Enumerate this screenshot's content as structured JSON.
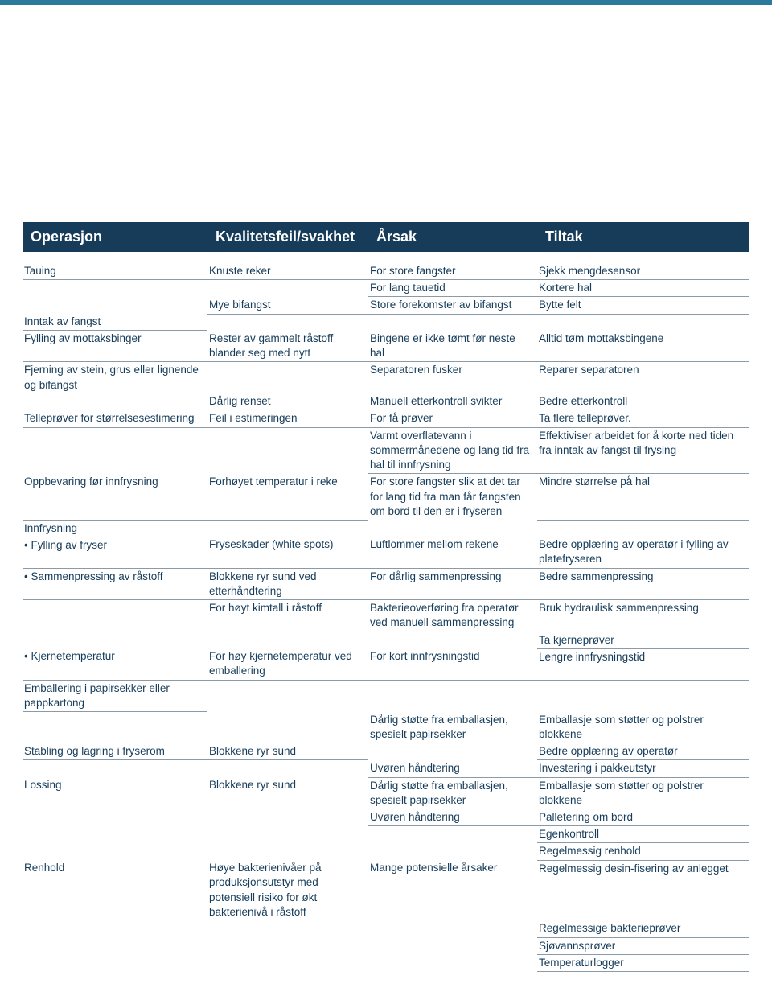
{
  "colors": {
    "headerBg": "#163c5a",
    "headerText": "#ffffff",
    "cellText": "#163c5a",
    "ruleColor": "#8a9aa6",
    "topBar": "#2c7a9b"
  },
  "header": {
    "c1": "Operasjon",
    "c2": "Kvalitetsfeil/svakhet",
    "c3": "Årsak",
    "c4": "Tiltak"
  },
  "rows": [
    {
      "c1": "Tauing",
      "c2": "Knuste reker",
      "c3": "For store fangster",
      "c4": "Sjekk mengdesensor"
    },
    {
      "c1": "",
      "c2": "",
      "c3": "For lang tauetid",
      "c4": "Kortere hal",
      "nb1": true,
      "nb2": true
    },
    {
      "c1": "",
      "c2": "Mye bifangst",
      "c3": "Store forekomster av bifangst",
      "c4": "Bytte felt",
      "nb1": true
    },
    {
      "c1": "Inntak av fangst",
      "c2": "",
      "c3": "",
      "c4": "",
      "nb2": true,
      "nb3": true,
      "nb4": true
    },
    {
      "c1": "Fylling av mottaksbinger",
      "c2": "Rester av gammelt råstoff blander seg med nytt",
      "c3": "Bingene er ikke tømt før neste hal",
      "c4": "Alltid tøm mottaksbingene"
    },
    {
      "c1": "Fjerning av stein, grus eller lignende og bifangst",
      "c2": "",
      "c3": "Separatoren fusker",
      "c4": "Reparer separatoren",
      "nb1": true,
      "nb2": true
    },
    {
      "c1": "",
      "c2": "Dårlig renset",
      "c3": "Manuell etterkontroll svikter",
      "c4": "Bedre etterkontroll"
    },
    {
      "c1": "Telleprøver for størrelsesestimering",
      "c2": "Feil i estimeringen",
      "c3": "For få prøver",
      "c4": "Ta flere telleprøver."
    },
    {
      "c1": "",
      "c2": "",
      "c3": "Varmt overflatevann i sommermånedene og lang tid fra hal til innfrysning",
      "c4": "Effektiviser arbeidet for å korte ned tiden fra inntak av fangst til frysing",
      "nb1": true,
      "nb2": true
    },
    {
      "c1": "Oppbevaring før innfrysning",
      "c2": "Forhøyet temperatur i reke",
      "c3": "For store fangster slik at det tar for lang tid fra man får fangsten om bord til den er i fryseren",
      "c4": "Mindre størrelse på hal",
      "nb3": true
    },
    {
      "c1": "Innfrysning",
      "c2": "",
      "c3": "",
      "c4": "",
      "nb2": true,
      "nb3": true,
      "nb4": true
    },
    {
      "c1": "• Fylling av fryser",
      "c2": "Fryseskader (white spots)",
      "c3": "Luftlommer mellom rekene",
      "c4": "Bedre opplæring av operatør i fylling av platefryseren",
      "indent1": true
    },
    {
      "c1": "• Sammenpressing av råstoff",
      "c2": "Blokkene ryr sund ved etterhåndtering",
      "c3": "For dårlig sammenpressing",
      "c4": "Bedre sammenpressing",
      "indent1": true
    },
    {
      "c1": "",
      "c2": "For høyt kimtall i råstoff",
      "c3": "Bakterieoverføring fra operatør ved manuell sammenpressing",
      "c4": "Bruk hydraulisk sammenpressing",
      "nb1": true
    },
    {
      "c1": "",
      "c2": "",
      "c3": "",
      "c4": "Ta kjerneprøver",
      "nb1": true,
      "nb2": true,
      "nb3": true
    },
    {
      "c1": "• Kjernetemperatur",
      "c2": "For høy kjernetemperatur ved emballering",
      "c3": "For kort innfrysningstid",
      "c4": "Lengre innfrysningstid",
      "indent1": true
    },
    {
      "c1": "Emballering i papirsekker eller pappkartong",
      "c2": "",
      "c3": "",
      "c4": "",
      "nb2": true,
      "nb3": true,
      "nb4": true
    },
    {
      "c1": "",
      "c2": "",
      "c3": "Dårlig støtte fra emballasjen, spesielt papirsekker",
      "c4": "Emballasje som støtter og polstrer blokkene",
      "nb1": true,
      "nb2": true
    },
    {
      "c1": "Stabling og lagring i fryserom",
      "c2": "Blokkene ryr sund",
      "c3": "",
      "c4": "Bedre opplæring av operatør",
      "nb3": true
    },
    {
      "c1": "",
      "c2": "",
      "c3": "Uvøren håndtering",
      "c4": "Investering i pakkeutstyr",
      "nb1": true,
      "nb2": true
    },
    {
      "c1": "Lossing",
      "c2": "Blokkene ryr sund",
      "c3": "Dårlig støtte fra emballasjen, spesielt papirsekker",
      "c4": "Emballasje som støtter og polstrer blokkene"
    },
    {
      "c1": "",
      "c2": "",
      "c3": "Uvøren håndtering",
      "c4": "Palletering om bord",
      "nb1": true,
      "nb2": true
    },
    {
      "c1": "",
      "c2": "",
      "c3": "",
      "c4": "Egenkontroll",
      "nb1": true,
      "nb2": true,
      "nb3": true
    },
    {
      "c1": "",
      "c2": "",
      "c3": "",
      "c4": "Regelmessig renhold",
      "nb1": true,
      "nb2": true,
      "nb3": true
    },
    {
      "c1": "Renhold",
      "c2": "Høye bakterienivåer på produksjonsutstyr med potensiell risiko for økt bakterienivå i råstoff",
      "c3": "Mange potensielle årsaker",
      "c4": "Regelmessig desin-fisering av anlegget",
      "nb1": true,
      "nb2": true,
      "nb3": true
    },
    {
      "c1": "",
      "c2": "",
      "c3": "",
      "c4": "Regelmessige bakterieprøver",
      "nb1": true,
      "nb2": true,
      "nb3": true
    },
    {
      "c1": "",
      "c2": "",
      "c3": "",
      "c4": "Sjøvannsprøver",
      "nb1": true,
      "nb2": true,
      "nb3": true
    },
    {
      "c1": "",
      "c2": "",
      "c3": "",
      "c4": "Temperaturlogger",
      "nb1": true,
      "nb2": true,
      "nb3": true
    }
  ]
}
